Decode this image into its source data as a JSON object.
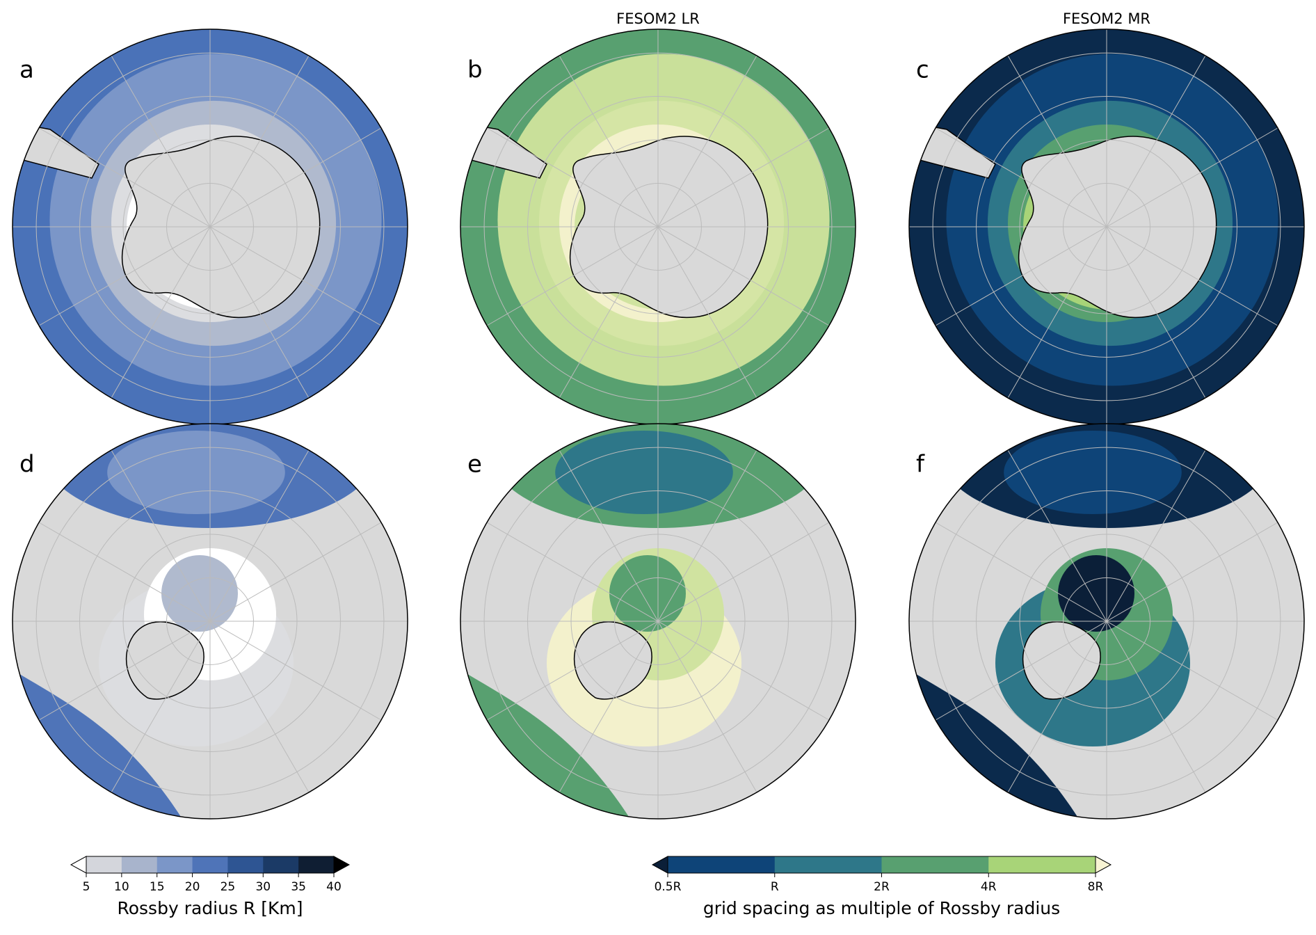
{
  "panels": [
    {
      "label": "a",
      "colors": [
        "#4a72b8",
        "#7b96c8",
        "#b0bace",
        "#dcdde0",
        "#ffffff"
      ]
    },
    {
      "label": "b",
      "title": "FESOM2 LR",
      "colors": [
        "#58a070",
        "#c9e09a",
        "#d5e5a5",
        "#f3f1cc",
        "#d0e3a0"
      ]
    },
    {
      "label": "c",
      "title": "FESOM2 MR",
      "colors": [
        "#0b2a4c",
        "#0e4478",
        "#2e7789",
        "#58a070",
        "#a8d478"
      ]
    },
    {
      "label": "d",
      "colors": [
        "#4f74b8",
        "#7b96c8",
        "#dcdde0",
        "#ffffff",
        "#b0bace"
      ]
    },
    {
      "label": "e",
      "colors": [
        "#58a070",
        "#2e7789",
        "#f3f1cc",
        "#d0e3a0",
        "#58a070"
      ]
    },
    {
      "label": "f",
      "colors": [
        "#0b2a4c",
        "#0e4478",
        "#2e7789",
        "#58a070",
        "#0b1f38"
      ]
    }
  ],
  "colorbars": [
    {
      "label": "Rossby radius R [Km]",
      "colors": [
        "#d4d6dc",
        "#a8b4cc",
        "#7b96c8",
        "#4f74b8",
        "#2e5593",
        "#1b3a66",
        "#0f1e33"
      ],
      "extend_colors": [
        "#ffffff",
        "#000000"
      ],
      "ticks": [
        5,
        10,
        15,
        20,
        25,
        30,
        35,
        40
      ]
    },
    {
      "label": "grid spacing as multiple of Rossby radius",
      "colors": [
        "#0e4478",
        "#2e7789",
        "#58a070",
        "#a8d478"
      ],
      "extend_colors": [
        "#0b1f38",
        "#f8f4d4"
      ],
      "ticks": [
        "0.5R",
        "R",
        "2R",
        "4R",
        "8R"
      ]
    }
  ]
}
